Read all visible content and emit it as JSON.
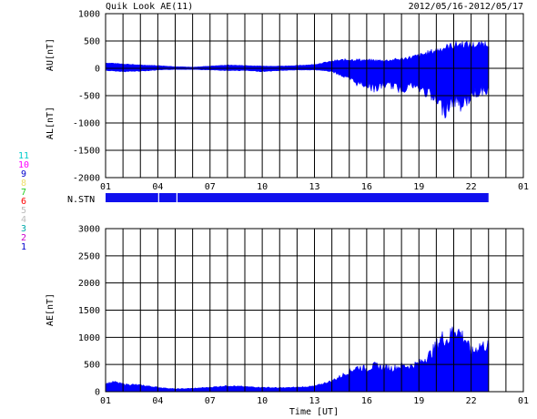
{
  "header": {
    "title": "Quik Look AE(11)",
    "date_range": "2012/05/16-2012/05/17"
  },
  "colors": {
    "trace": "#0000ff",
    "bar": "#1010ee",
    "grid": "#000000"
  },
  "station_legend": [
    {
      "label": "11",
      "color": "#00cccc"
    },
    {
      "label": "10",
      "color": "#ff00ff"
    },
    {
      "label": "9",
      "color": "#0000cc"
    },
    {
      "label": "8",
      "color": "#eedd66"
    },
    {
      "label": "7",
      "color": "#22cc22"
    },
    {
      "label": "6",
      "color": "#ff0000"
    },
    {
      "label": "5",
      "color": "#bbbbbb"
    },
    {
      "label": "4",
      "color": "#bbbbbb"
    },
    {
      "label": "3",
      "color": "#00aaaa"
    },
    {
      "label": "2",
      "color": "#cc00cc"
    },
    {
      "label": "1",
      "color": "#0000cc"
    }
  ],
  "nstn_label": "N.STN",
  "chart_data": [
    {
      "type": "area",
      "name": "AU/AL",
      "ylabel_upper": "AU[nT]",
      "ylabel_lower": "AL[nT]",
      "x_ticks": [
        "01",
        "04",
        "07",
        "10",
        "13",
        "16",
        "19",
        "22",
        "01"
      ],
      "y_ticks": [
        "1000",
        "500",
        "0",
        "-500",
        "-1000",
        "-1500",
        "-2000"
      ],
      "xlim": [
        0,
        24
      ],
      "ylim": [
        -2000,
        1000
      ],
      "data_end_hour": 22,
      "au_envelope": {
        "x": [
          0,
          1,
          2,
          3,
          4,
          5,
          6,
          7,
          8,
          9,
          10,
          11,
          12,
          12.5,
          13,
          14,
          15,
          16,
          17,
          17.5,
          18,
          18.5,
          19,
          19.5,
          20,
          20.5,
          21,
          21.5,
          22
        ],
        "y": [
          100,
          80,
          60,
          50,
          30,
          20,
          40,
          60,
          50,
          40,
          40,
          50,
          70,
          100,
          130,
          160,
          150,
          140,
          170,
          200,
          230,
          280,
          330,
          380,
          420,
          450,
          420,
          430,
          460
        ]
      },
      "al_envelope": {
        "x": [
          0,
          1,
          2,
          3,
          4,
          5,
          6,
          7,
          8,
          9,
          10,
          11,
          12,
          12.5,
          13,
          13.5,
          14,
          14.5,
          15,
          15.5,
          16,
          16.5,
          17,
          17.5,
          18,
          18.5,
          19,
          19.5,
          20,
          20.5,
          21,
          21.5,
          22
        ],
        "y": [
          -40,
          -60,
          -50,
          -30,
          -20,
          -20,
          -30,
          -40,
          -40,
          -60,
          -40,
          -30,
          -30,
          -40,
          -60,
          -120,
          -200,
          -280,
          -300,
          -380,
          -300,
          -320,
          -400,
          -300,
          -380,
          -450,
          -620,
          -750,
          -580,
          -680,
          -500,
          -420,
          -390
        ]
      }
    },
    {
      "type": "area",
      "name": "AE",
      "ylabel": "AE[nT]",
      "xlabel": "Time [UT]",
      "x_ticks": [
        "01",
        "04",
        "07",
        "10",
        "13",
        "16",
        "19",
        "22",
        "01"
      ],
      "y_ticks": [
        "3000",
        "2500",
        "2000",
        "1500",
        "1000",
        "500",
        "0"
      ],
      "xlim": [
        0,
        24
      ],
      "ylim": [
        0,
        3000
      ],
      "data_end_hour": 22,
      "ae_envelope": {
        "x": [
          0,
          0.5,
          1,
          2,
          3,
          4,
          5,
          6,
          7,
          8,
          9,
          10,
          11,
          12,
          12.5,
          13,
          13.5,
          14,
          14.5,
          15,
          15.5,
          16,
          16.5,
          17,
          17.5,
          18,
          18.3,
          18.7,
          19,
          19.3,
          19.7,
          20,
          20.3,
          20.7,
          21,
          21.5,
          22
        ],
        "y": [
          150,
          180,
          140,
          120,
          80,
          50,
          60,
          80,
          110,
          90,
          80,
          70,
          80,
          100,
          150,
          200,
          280,
          380,
          450,
          420,
          480,
          450,
          430,
          480,
          470,
          520,
          600,
          700,
          850,
          1000,
          950,
          1180,
          1100,
          950,
          700,
          850,
          840
        ]
      }
    }
  ]
}
